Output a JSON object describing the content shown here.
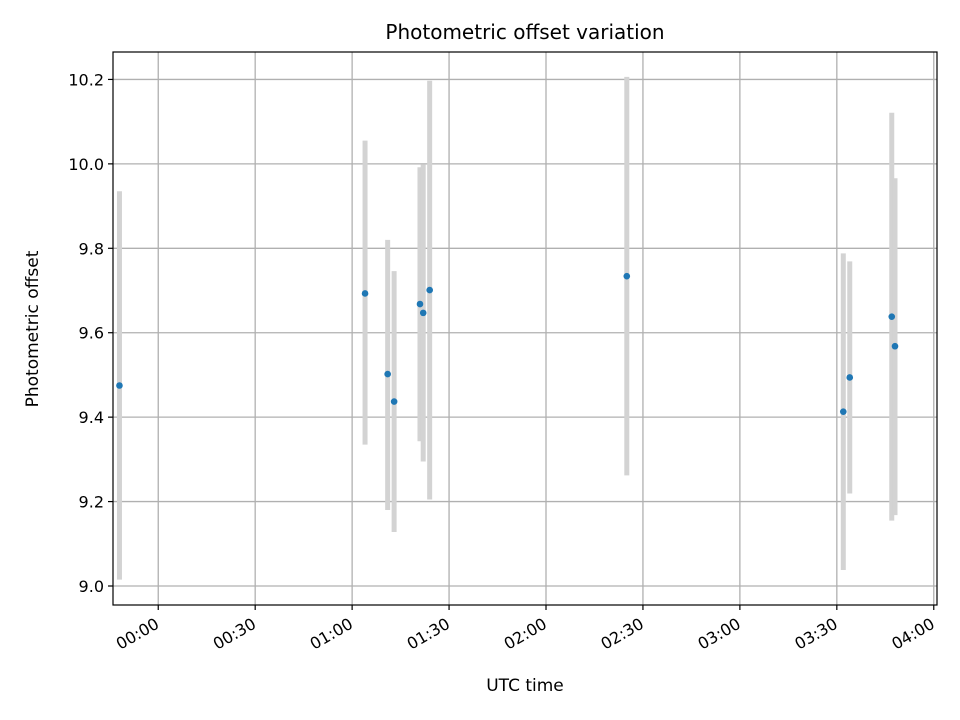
{
  "chart_data": {
    "type": "scatter",
    "title": "Photometric offset variation",
    "xlabel": "UTC time",
    "ylabel": "Photometric offset",
    "x_axis_type": "time",
    "xlim": [
      "-00:14",
      "04:01"
    ],
    "ylim": [
      8.955,
      10.265
    ],
    "xticks": [
      "00:00",
      "00:30",
      "01:00",
      "01:30",
      "02:00",
      "02:30",
      "03:00",
      "03:30",
      "04:00"
    ],
    "yticks": [
      "9.0",
      "9.2",
      "9.4",
      "9.6",
      "9.8",
      "10.0",
      "10.2"
    ],
    "grid": true,
    "point_color": "#1f77b4",
    "errorbar_color": "#d3d3d3",
    "series": [
      {
        "points": [
          {
            "x": "23:48",
            "y": 9.475,
            "ymin": 9.015,
            "ymax": 9.935
          },
          {
            "x": "01:04",
            "y": 9.693,
            "ymin": 9.335,
            "ymax": 10.055
          },
          {
            "x": "01:11",
            "y": 9.502,
            "ymin": 9.18,
            "ymax": 9.82
          },
          {
            "x": "01:13",
            "y": 9.437,
            "ymin": 9.128,
            "ymax": 9.746
          },
          {
            "x": "01:21",
            "y": 9.668,
            "ymin": 9.343,
            "ymax": 9.992
          },
          {
            "x": "01:22",
            "y": 9.647,
            "ymin": 9.295,
            "ymax": 9.999
          },
          {
            "x": "01:24",
            "y": 9.701,
            "ymin": 9.205,
            "ymax": 10.197
          },
          {
            "x": "02:25",
            "y": 9.734,
            "ymin": 9.262,
            "ymax": 10.206
          },
          {
            "x": "03:32",
            "y": 9.413,
            "ymin": 9.038,
            "ymax": 9.788
          },
          {
            "x": "03:34",
            "y": 9.494,
            "ymin": 9.219,
            "ymax": 9.769
          },
          {
            "x": "03:47",
            "y": 9.638,
            "ymin": 9.155,
            "ymax": 10.121
          },
          {
            "x": "03:48",
            "y": 9.568,
            "ymin": 9.168,
            "ymax": 9.966
          }
        ]
      }
    ]
  }
}
